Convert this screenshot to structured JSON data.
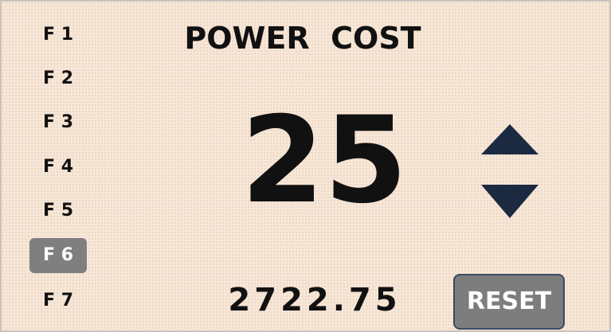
{
  "menu": {
    "items": [
      "F 1",
      "F 2",
      "F 3",
      "F 4",
      "F 5",
      "F 6",
      "F 7"
    ],
    "active": 5
  },
  "header": {
    "title": "POWER  COST"
  },
  "setting": {
    "value": "25"
  },
  "total": {
    "value": "2722.75"
  },
  "button": {
    "label": "RESET"
  }
}
